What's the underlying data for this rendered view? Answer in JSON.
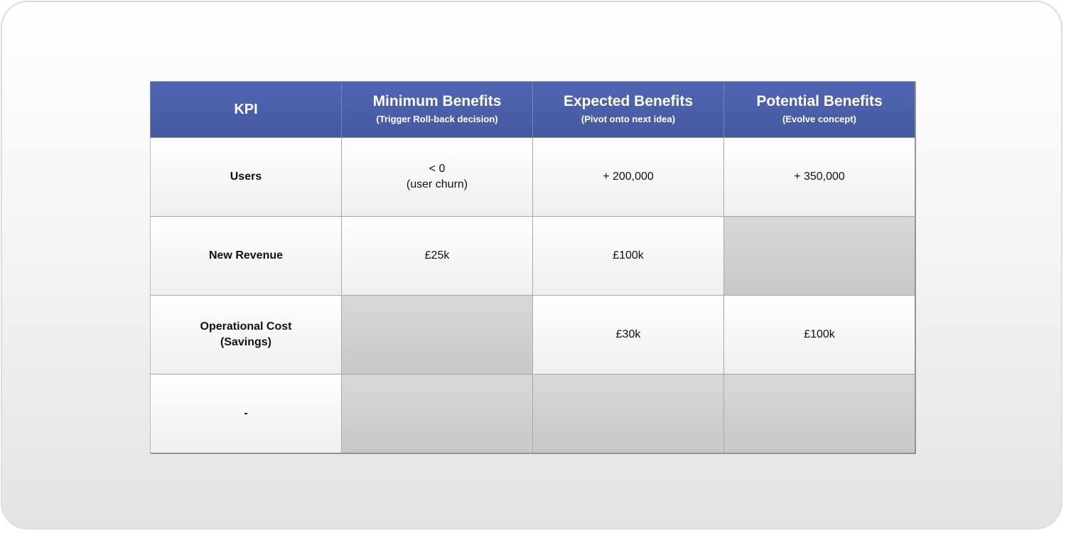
{
  "table": {
    "header": {
      "kpi": "KPI",
      "columns": [
        {
          "title": "Minimum Benefits",
          "subtitle": "(Trigger Roll-back decision)"
        },
        {
          "title": "Expected Benefits",
          "subtitle": "(Pivot onto next idea)"
        },
        {
          "title": "Potential Benefits",
          "subtitle": "(Evolve concept)"
        }
      ]
    },
    "rows": [
      {
        "kpi": "Users",
        "kpi_line2": "",
        "minimum": "< 0",
        "minimum_line2": "(user churn)",
        "expected": "+ 200,000",
        "potential": "+ 350,000"
      },
      {
        "kpi": "New Revenue",
        "kpi_line2": "",
        "minimum": "£25k",
        "minimum_line2": "",
        "expected": "£100k",
        "potential": ""
      },
      {
        "kpi": "Operational Cost",
        "kpi_line2": "(Savings)",
        "minimum": "",
        "minimum_line2": "",
        "expected": "£30k",
        "potential": "£100k"
      },
      {
        "kpi": "-",
        "kpi_line2": "",
        "minimum": "",
        "minimum_line2": "",
        "expected": "",
        "potential": ""
      }
    ],
    "colors": {
      "header_bg": "#4a5fa9",
      "header_text": "#ffffff",
      "empty_cell": "#cfcfcf",
      "filled_cell": "#f6f6f6",
      "frame_border": "#d9dde6"
    }
  }
}
